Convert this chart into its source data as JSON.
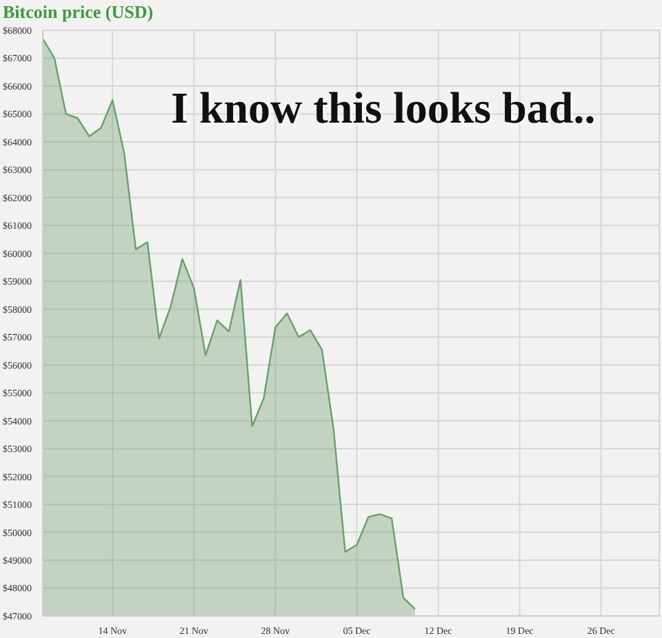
{
  "chart_data": {
    "type": "area",
    "title": "Bitcoin price (USD)",
    "annotations": [
      "I know this looks bad.."
    ],
    "x": [
      "--11-08",
      "--11-09",
      "--11-10",
      "--11-11",
      "--11-12",
      "--11-13",
      "--11-14",
      "--11-15",
      "--11-16",
      "--11-17",
      "--11-18",
      "--11-19",
      "--11-20",
      "--11-21",
      "--11-22",
      "--11-23",
      "--11-24",
      "--11-25",
      "--11-26",
      "--11-27",
      "--11-28",
      "--11-29",
      "--11-30",
      "--12-01",
      "--12-02",
      "--12-03",
      "--12-04",
      "--12-05",
      "--12-06",
      "--12-07",
      "--12-08",
      "--12-09",
      "--12-10"
    ],
    "series": [
      {
        "color": "#6a9f68",
        "values": [
          67700,
          67000,
          65000,
          64850,
          64200,
          64500,
          65500,
          63600,
          60150,
          60400,
          56950,
          58100,
          59800,
          58750,
          56350,
          57600,
          57200,
          59050,
          53800,
          54800,
          57350,
          57850,
          57000,
          57250,
          56550,
          53700,
          49300,
          49550,
          50550,
          50650,
          50500,
          47650,
          47250
        ]
      }
    ],
    "xlim": [
      "--11-08",
      "--12-31"
    ],
    "xticks": [
      {
        "value": "--11-14",
        "label": "14 Nov"
      },
      {
        "value": "--11-21",
        "label": "21 Nov"
      },
      {
        "value": "--11-28",
        "label": "28 Nov"
      },
      {
        "value": "--12-05",
        "label": "05 Dec"
      },
      {
        "value": "--12-12",
        "label": "12 Dec"
      },
      {
        "value": "--12-19",
        "label": "19 Dec"
      },
      {
        "value": "--12-26",
        "label": "26 Dec"
      }
    ],
    "ylim": [
      47000,
      68000
    ],
    "yticks": [
      {
        "value": 47000,
        "label": "$47000"
      },
      {
        "value": 48000,
        "label": "$48000"
      },
      {
        "value": 49000,
        "label": "$49000"
      },
      {
        "value": 50000,
        "label": "$50000"
      },
      {
        "value": 51000,
        "label": "$51000"
      },
      {
        "value": 52000,
        "label": "$52000"
      },
      {
        "value": 53000,
        "label": "$53000"
      },
      {
        "value": 54000,
        "label": "$54000"
      },
      {
        "value": 55000,
        "label": "$55000"
      },
      {
        "value": 56000,
        "label": "$56000"
      },
      {
        "value": 57000,
        "label": "$57000"
      },
      {
        "value": 58000,
        "label": "$58000"
      },
      {
        "value": 59000,
        "label": "$59000"
      },
      {
        "value": 60000,
        "label": "$60000"
      },
      {
        "value": 61000,
        "label": "$61000"
      },
      {
        "value": 62000,
        "label": "$62000"
      },
      {
        "value": 63000,
        "label": "$63000"
      },
      {
        "value": 64000,
        "label": "$64000"
      },
      {
        "value": 65000,
        "label": "$65000"
      },
      {
        "value": 66000,
        "label": "$66000"
      },
      {
        "value": 67000,
        "label": "$67000"
      },
      {
        "value": 68000,
        "label": "$68000"
      }
    ],
    "grid": true
  }
}
